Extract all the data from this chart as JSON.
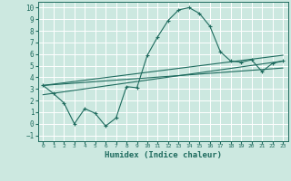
{
  "title": "",
  "xlabel": "Humidex (Indice chaleur)",
  "ylabel": "",
  "bg_color": "#cce8e0",
  "grid_color": "#ffffff",
  "line_color": "#1e6b5e",
  "xlim": [
    -0.5,
    23.5
  ],
  "ylim": [
    -1.5,
    10.5
  ],
  "xticks": [
    0,
    1,
    2,
    3,
    4,
    5,
    6,
    7,
    8,
    9,
    10,
    11,
    12,
    13,
    14,
    15,
    16,
    17,
    18,
    19,
    20,
    21,
    22,
    23
  ],
  "yticks": [
    -1,
    0,
    1,
    2,
    3,
    4,
    5,
    6,
    7,
    8,
    9,
    10
  ],
  "series1_x": [
    0,
    1,
    2,
    3,
    4,
    5,
    6,
    7,
    8,
    9,
    10,
    11,
    12,
    13,
    14,
    15,
    16,
    17,
    18,
    19,
    20,
    21,
    22,
    23
  ],
  "series1_y": [
    3.3,
    2.6,
    1.8,
    0.0,
    1.3,
    0.9,
    -0.2,
    0.5,
    3.2,
    3.1,
    5.9,
    7.5,
    8.9,
    9.8,
    10.0,
    9.5,
    8.4,
    6.2,
    5.4,
    5.3,
    5.5,
    4.5,
    5.2,
    5.4
  ],
  "series2_x": [
    0,
    23
  ],
  "series2_y": [
    2.5,
    5.4
  ],
  "series3_x": [
    0,
    23
  ],
  "series3_y": [
    3.3,
    5.9
  ],
  "series4_x": [
    0,
    23
  ],
  "series4_y": [
    3.3,
    4.8
  ]
}
